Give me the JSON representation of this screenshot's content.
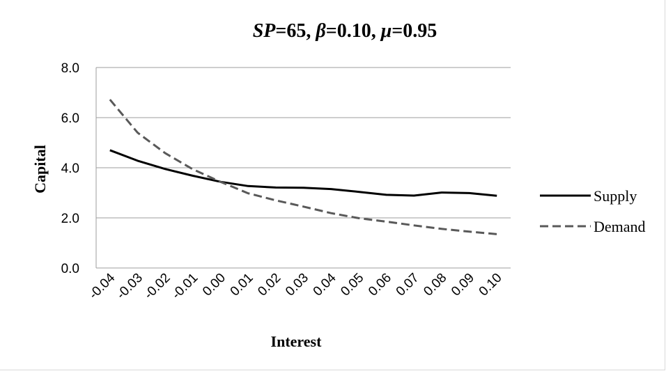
{
  "chart_data": {
    "type": "line",
    "title": {
      "p1": "SP",
      "p2": "=65, ",
      "p3": "β",
      "p4": "=0.10, ",
      "p5": "μ",
      "p6": "=0.95"
    },
    "xlabel": "Interest",
    "ylabel": "Capital",
    "x": [
      "-0.04",
      "-0.03",
      "-0.02",
      "-0.01",
      "0.00",
      "0.01",
      "0.02",
      "0.03",
      "0.04",
      "0.05",
      "0.06",
      "0.07",
      "0.08",
      "0.09",
      "0.10"
    ],
    "ylim": [
      0,
      8
    ],
    "yticks": [
      "0.0",
      "2.0",
      "4.0",
      "6.0",
      "8.0"
    ],
    "grid": true,
    "legend_position": "right",
    "series": [
      {
        "name": "Supply",
        "style": "solid",
        "color": "#000000",
        "values": [
          4.7,
          4.28,
          3.95,
          3.68,
          3.44,
          3.27,
          3.21,
          3.2,
          3.15,
          3.04,
          2.92,
          2.89,
          3.01,
          2.99,
          2.88
        ]
      },
      {
        "name": "Demand",
        "style": "dashed",
        "color": "#595959",
        "values": [
          6.72,
          5.4,
          4.58,
          3.94,
          3.44,
          2.98,
          2.7,
          2.45,
          2.19,
          1.99,
          1.85,
          1.7,
          1.56,
          1.45,
          1.35
        ]
      }
    ]
  }
}
